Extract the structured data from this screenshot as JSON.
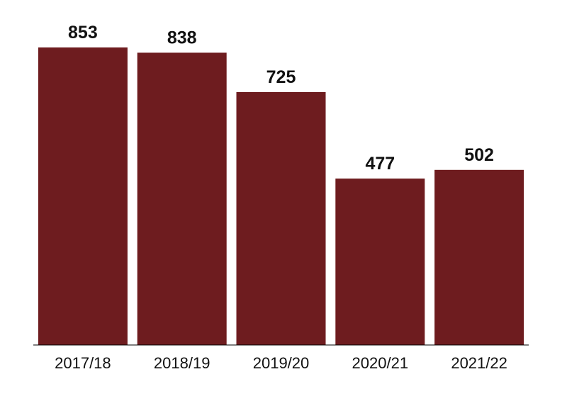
{
  "chart_data": {
    "type": "bar",
    "title": "",
    "xlabel": "",
    "ylabel": "",
    "categories": [
      "2017/18",
      "2018/19",
      "2019/20",
      "2020/21",
      "2021/22"
    ],
    "values": [
      853,
      838,
      725,
      477,
      502
    ],
    "data_labels": [
      "853",
      "838",
      "725",
      "477",
      "502"
    ],
    "ylim": [
      0,
      1000
    ],
    "grid": false,
    "legend": "none",
    "bar_color": "#6e1c1f",
    "axis_color": "#000000"
  }
}
